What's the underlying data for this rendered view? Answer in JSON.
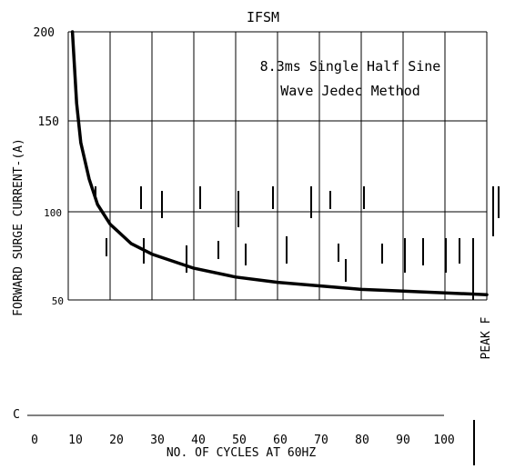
{
  "chart_data": {
    "type": "line",
    "title": "IFSM",
    "annotation": [
      "8.3ms Single Half Sine",
      "Wave Jedec Method"
    ],
    "ylabel": "FORWARD SURGE CURRENT-(A)",
    "ylabel_right": "PEAK F",
    "xlabel": "NO. OF CYCLES AT 60HZ",
    "ylim": [
      0,
      200
    ],
    "ytick_labels": [
      "200",
      "150",
      "100",
      "50"
    ],
    "y_zero_label": "C",
    "xlim": [
      0,
      100
    ],
    "xticks": [
      "0",
      "10",
      "20",
      "30",
      "40",
      "50",
      "60",
      "70",
      "80",
      "90",
      "100"
    ],
    "series": [
      {
        "x": [
          1,
          2,
          3,
          5,
          7,
          10,
          15,
          20,
          30,
          40,
          50,
          60,
          70,
          80,
          90,
          100
        ],
        "values": [
          200,
          160,
          138,
          118,
          104,
          93,
          82,
          76,
          68,
          63,
          60,
          58,
          56,
          55,
          54,
          53
        ]
      }
    ],
    "grid": true
  }
}
